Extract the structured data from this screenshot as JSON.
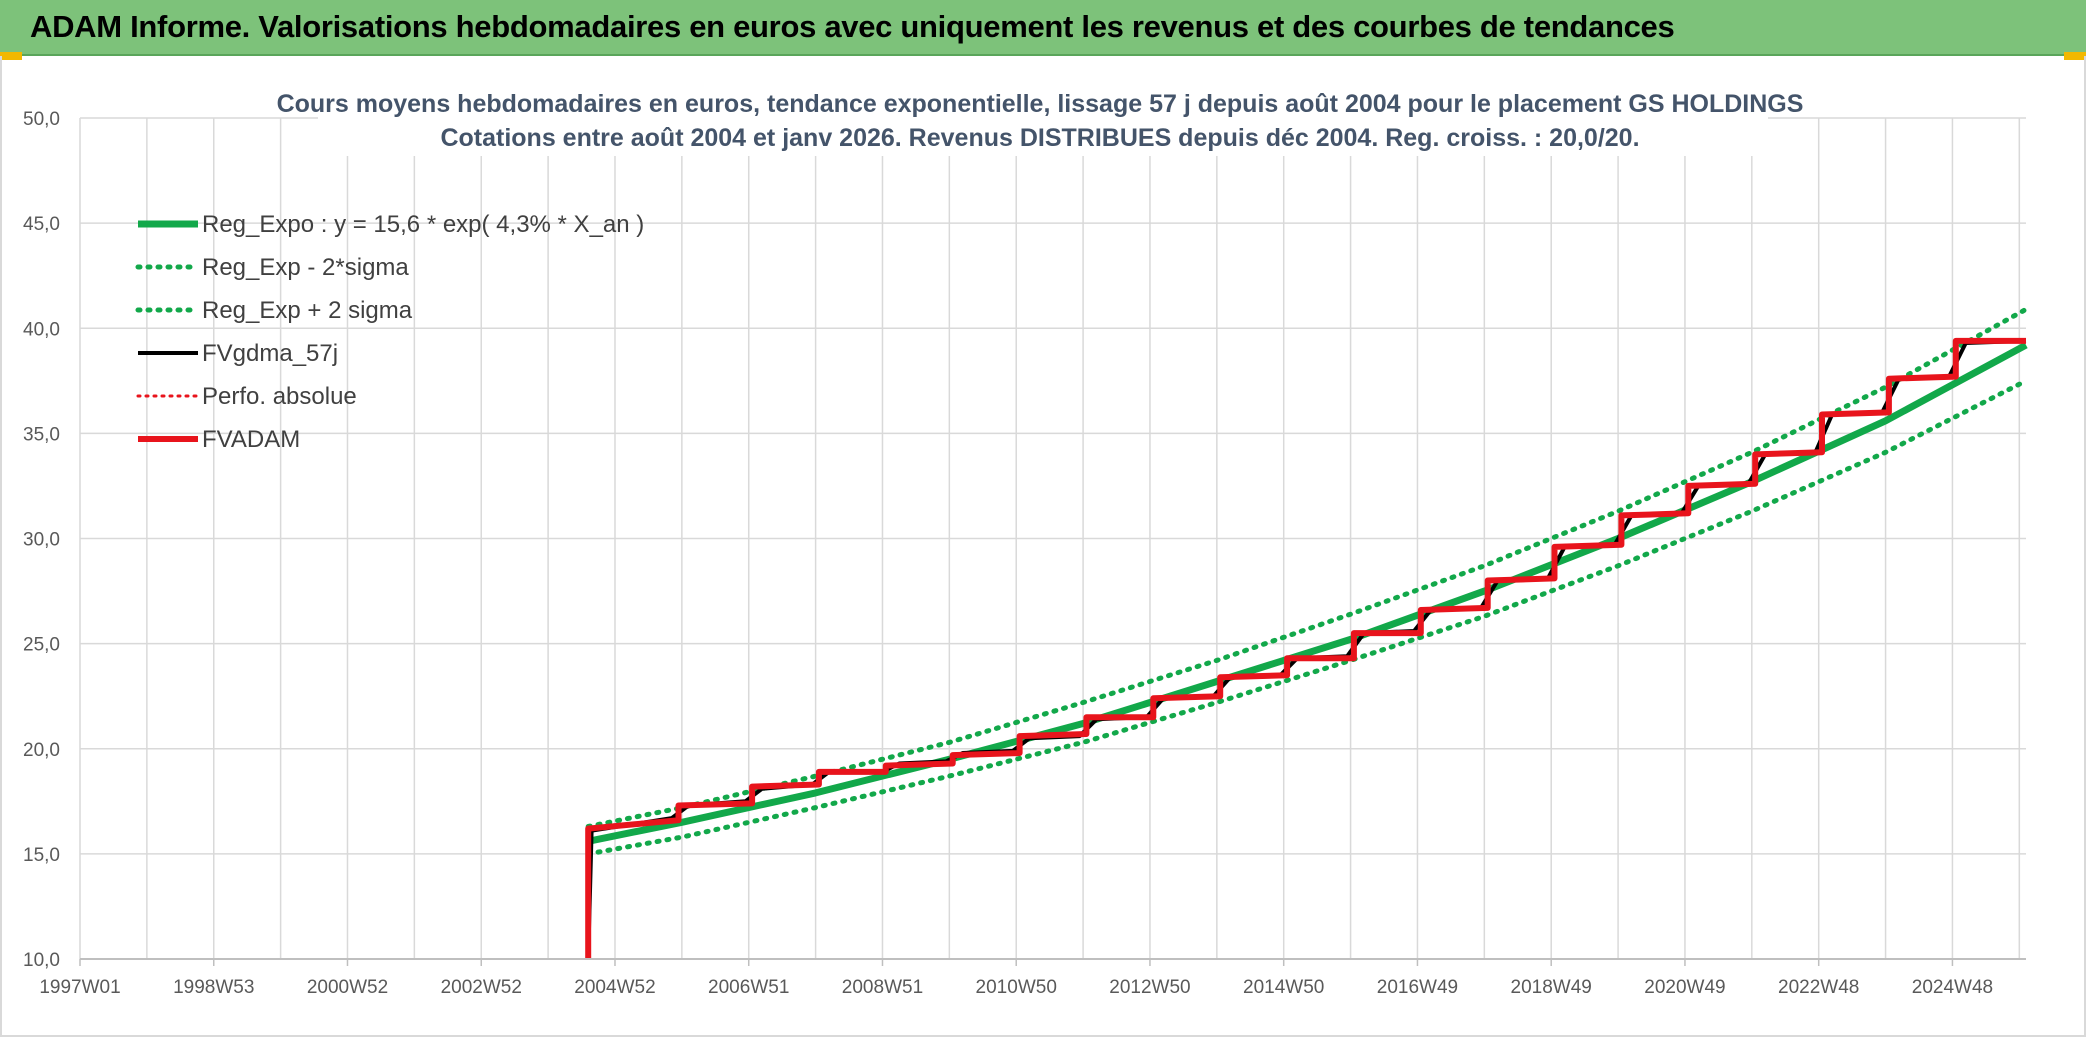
{
  "header": {
    "title": "ADAM Informe. Valorisations hebdomadaires en euros avec uniquement les revenus et des courbes de tendances"
  },
  "colors": {
    "header_bg": "#7dc27a",
    "accent": "#f2b800",
    "trend_green": "#12a84a",
    "fvadam_red": "#e8141c",
    "gdma_black": "#000000",
    "perfo_red": "#e8141c"
  },
  "chart_data": {
    "type": "line",
    "title": "Cours moyens hebdomadaires en euros, tendance exponentielle, lissage 57 j depuis août 2004 pour le placement GS HOLDINGS",
    "subtitle": "Cotations entre août 2004 et janv 2026. Revenus DISTRIBUES depuis déc 2004. Reg. croiss. : 20,0/20.",
    "xlabel": "",
    "ylabel": "",
    "x_range": [
      1997.0,
      2026.1
    ],
    "ylim": [
      10,
      50
    ],
    "y_ticks": [
      "10,0",
      "15,0",
      "20,0",
      "25,0",
      "30,0",
      "35,0",
      "40,0",
      "45,0",
      "50,0"
    ],
    "x_ticks": [
      "1997W01",
      "1998W53",
      "2000W52",
      "2002W52",
      "2004W52",
      "2006W51",
      "2008W51",
      "2010W50",
      "2012W50",
      "2014W50",
      "2016W49",
      "2018W49",
      "2020W49",
      "2022W48",
      "2024W48"
    ],
    "grid": true,
    "legend_position": "top-left",
    "series": [
      {
        "name": "Reg_Expo : y = 15,6 * exp( 4,3% *  X_an )",
        "color": "#12a84a",
        "style": "solid",
        "x": [
          2004.6,
          2006.0,
          2008.0,
          2010.0,
          2012.0,
          2014.0,
          2016.0,
          2018.0,
          2020.0,
          2022.0,
          2024.0,
          2026.1
        ],
        "values": [
          15.6,
          16.5,
          17.9,
          19.5,
          21.2,
          23.2,
          25.2,
          27.5,
          30.0,
          32.7,
          35.6,
          39.2
        ]
      },
      {
        "name": "Reg_Exp - 2*sigma",
        "color": "#12a84a",
        "style": "dotted",
        "x": [
          2004.6,
          2006.0,
          2008.0,
          2010.0,
          2012.0,
          2014.0,
          2016.0,
          2018.0,
          2020.0,
          2022.0,
          2024.0,
          2026.1
        ],
        "values": [
          15.0,
          15.8,
          17.2,
          18.7,
          20.3,
          22.2,
          24.2,
          26.3,
          28.7,
          31.3,
          34.1,
          37.5
        ]
      },
      {
        "name": "Reg_Exp + 2 sigma",
        "color": "#12a84a",
        "style": "dotted",
        "x": [
          2004.6,
          2006.0,
          2008.0,
          2010.0,
          2012.0,
          2014.0,
          2016.0,
          2018.0,
          2020.0,
          2022.0,
          2024.0,
          2026.1
        ],
        "values": [
          16.3,
          17.2,
          18.7,
          20.3,
          22.2,
          24.2,
          26.4,
          28.7,
          31.3,
          34.1,
          37.2,
          40.9
        ]
      },
      {
        "name": "FVgdma_57j",
        "color": "#000000",
        "style": "solid",
        "x": [
          2004.6,
          2004.65,
          2005.85,
          2006.1,
          2006.95,
          2007.2,
          2007.95,
          2008.2,
          2009.0,
          2009.25,
          2009.95,
          2010.2,
          2010.95,
          2011.2,
          2011.95,
          2012.2,
          2012.95,
          2013.2,
          2013.95,
          2014.2,
          2014.95,
          2015.2,
          2015.95,
          2016.2,
          2016.95,
          2017.2,
          2017.95,
          2018.2,
          2018.95,
          2019.2,
          2019.95,
          2020.2,
          2020.95,
          2021.2,
          2021.95,
          2022.2,
          2022.95,
          2023.2,
          2023.95,
          2024.2,
          2024.95,
          2025.2,
          2026.1
        ],
        "values": [
          10.0,
          16.1,
          16.7,
          17.3,
          17.5,
          18.1,
          18.3,
          18.9,
          18.9,
          19.3,
          19.4,
          19.8,
          19.9,
          20.5,
          20.6,
          21.4,
          21.5,
          22.4,
          22.5,
          23.4,
          23.5,
          24.3,
          24.4,
          25.5,
          25.6,
          26.6,
          26.7,
          28.0,
          28.1,
          29.6,
          29.7,
          31.1,
          31.2,
          32.5,
          32.6,
          34.0,
          34.1,
          35.9,
          36.0,
          37.6,
          37.7,
          39.3,
          39.4
        ]
      },
      {
        "name": "Perfo. absolue",
        "color": "#e8141c",
        "style": "dotted",
        "x": [],
        "values": []
      },
      {
        "name": "FVADAM",
        "color": "#e8141c",
        "style": "solid",
        "x": [
          2004.6,
          2004.6,
          2005.95,
          2005.95,
          2007.05,
          2007.05,
          2008.05,
          2008.05,
          2009.05,
          2009.05,
          2010.05,
          2010.05,
          2011.05,
          2011.05,
          2012.05,
          2012.05,
          2013.05,
          2013.05,
          2014.05,
          2014.05,
          2015.05,
          2015.05,
          2016.05,
          2016.05,
          2017.05,
          2017.05,
          2018.05,
          2018.05,
          2019.05,
          2019.05,
          2020.05,
          2020.05,
          2021.05,
          2021.05,
          2022.05,
          2022.05,
          2023.05,
          2023.05,
          2024.05,
          2024.05,
          2025.05,
          2025.05,
          2026.1
        ],
        "values": [
          10.0,
          16.2,
          16.6,
          17.3,
          17.4,
          18.2,
          18.3,
          18.9,
          18.9,
          19.2,
          19.3,
          19.7,
          19.8,
          20.6,
          20.7,
          21.5,
          21.5,
          22.4,
          22.5,
          23.4,
          23.5,
          24.3,
          24.3,
          25.5,
          25.5,
          26.6,
          26.7,
          28.0,
          28.1,
          29.6,
          29.7,
          31.1,
          31.2,
          32.5,
          32.6,
          34.0,
          34.1,
          35.9,
          36.0,
          37.6,
          37.7,
          39.4,
          39.4
        ]
      }
    ]
  }
}
